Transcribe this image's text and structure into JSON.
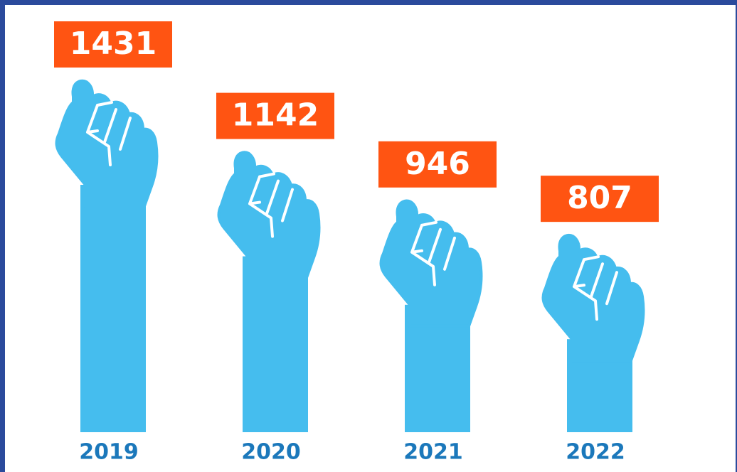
{
  "chart_data": {
    "type": "bar",
    "categories": [
      "2019",
      "2020",
      "2021",
      "2022"
    ],
    "values": [
      1431,
      1142,
      946,
      807
    ],
    "color": "#45bdee",
    "label_color": "#ff5412",
    "category_color": "#1b78bb"
  }
}
